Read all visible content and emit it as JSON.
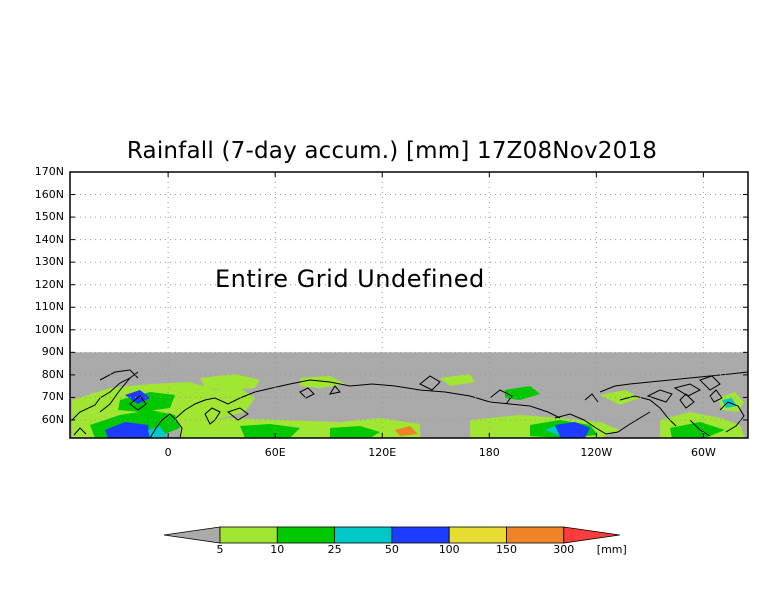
{
  "title": "Rainfall (7-day accum.) [mm] 17Z08Nov2018",
  "message": "Entire Grid Undefined",
  "y_axis": {
    "labels": [
      "170N",
      "160N",
      "150N",
      "140N",
      "130N",
      "120N",
      "110N",
      "100N",
      "90N",
      "80N",
      "70N",
      "60N"
    ],
    "lat_values": [
      170,
      160,
      150,
      140,
      130,
      120,
      110,
      100,
      90,
      80,
      70,
      60
    ]
  },
  "x_axis": {
    "labels": [
      "0",
      "60E",
      "120E",
      "180",
      "120W",
      "60W"
    ],
    "lon_values": [
      0,
      60,
      120,
      180,
      240,
      300
    ]
  },
  "map": {
    "extent_lon": [
      -55,
      325
    ],
    "extent_lat": [
      52,
      170
    ],
    "grid": "dotted",
    "data_lat_max": 90,
    "colors": {
      "undefined": "#ffffff",
      "no_data": "#aaaaaa",
      "coast": "#000000"
    }
  },
  "colorbar": {
    "levels": [
      "5",
      "10",
      "25",
      "50",
      "100",
      "150",
      "300"
    ],
    "unit": "[mm]",
    "colors": [
      "#aaaaaa",
      "#a0e632",
      "#00c800",
      "#00c8c8",
      "#1e3cff",
      "#e6dc32",
      "#f08228",
      "#fa3c3c"
    ]
  }
}
